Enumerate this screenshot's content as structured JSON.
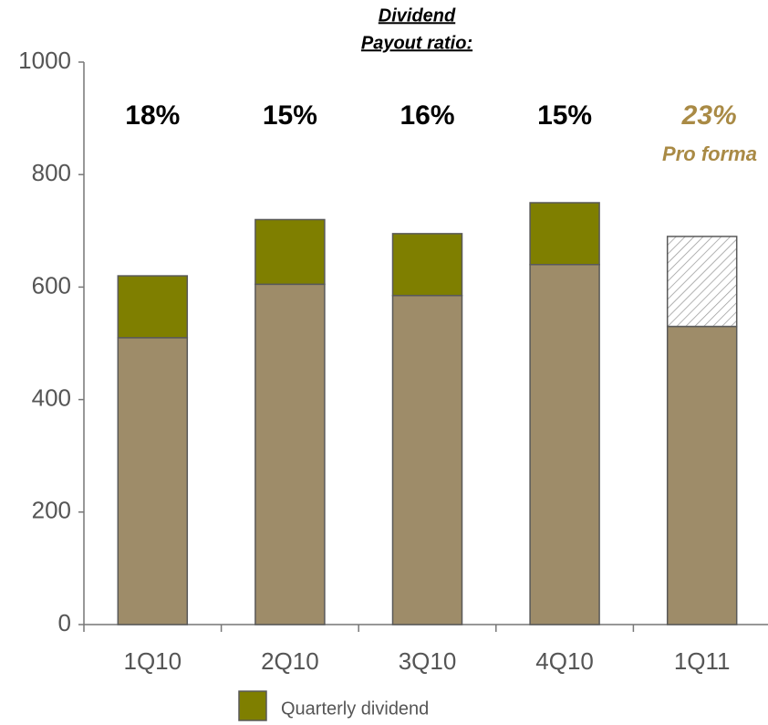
{
  "chart_data": {
    "type": "stacked_bar",
    "annotation_header": [
      "Dividend",
      "Payout ratio:"
    ],
    "annotations": [
      "18%",
      "15%",
      "16%",
      "15%",
      "23%"
    ],
    "annotation_note": "Pro forma",
    "categories": [
      "1Q10",
      "2Q10",
      "3Q10",
      "4Q10",
      "1Q11"
    ],
    "series": [
      {
        "color": "#9e8c69",
        "values": [
          510,
          605,
          585,
          640,
          530
        ]
      },
      {
        "name": "Quarterly dividend",
        "color": "#7f7f00",
        "values": [
          110,
          115,
          110,
          110,
          160
        ],
        "hatched": [
          false,
          false,
          false,
          false,
          true
        ]
      }
    ],
    "ylim": [
      0,
      1000
    ],
    "yticks": [
      0,
      200,
      400,
      600,
      800,
      1000
    ],
    "grid": false,
    "legend": "bottom"
  }
}
